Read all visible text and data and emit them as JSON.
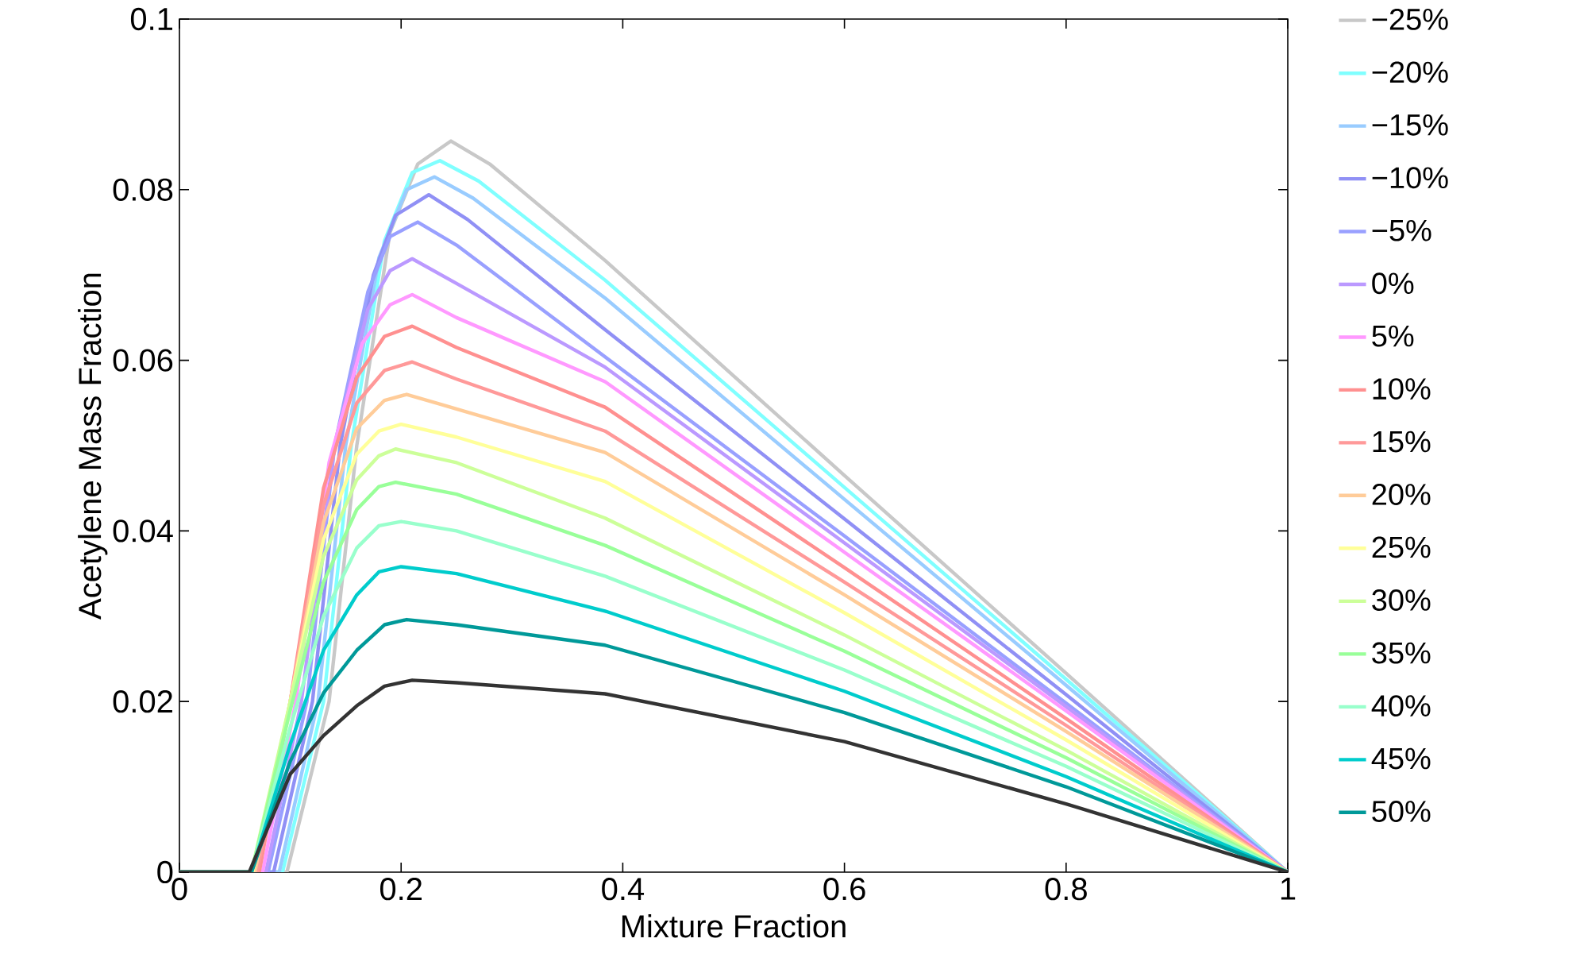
{
  "chart_data": {
    "type": "line",
    "xlabel": "Mixture Fraction",
    "ylabel": "Acetylene Mass Fraction",
    "xlim": [
      0,
      1
    ],
    "ylim": [
      0,
      0.1
    ],
    "xticks": [
      0,
      0.2,
      0.4,
      0.6,
      0.8,
      1
    ],
    "yticks": [
      0,
      0.02,
      0.04,
      0.06,
      0.08,
      0.1
    ],
    "grid": false,
    "legend": "right",
    "marker": "none",
    "line_style": "solid",
    "series": [
      {
        "name": "−25%",
        "color": "#c8c8c8",
        "x": [
          0,
          0.097,
          0.135,
          0.16,
          0.19,
          0.215,
          0.245,
          0.28,
          0.384,
          0.6,
          0.8,
          1
        ],
        "values": [
          0,
          0,
          0.02,
          0.05,
          0.075,
          0.083,
          0.0857,
          0.083,
          0.0717,
          0.0465,
          0.0233,
          0
        ]
      },
      {
        "name": "−20%",
        "color": "#80ffff",
        "x": [
          0,
          0.093,
          0.13,
          0.155,
          0.185,
          0.21,
          0.235,
          0.27,
          0.384,
          0.6,
          0.8,
          1
        ],
        "values": [
          0,
          0,
          0.02,
          0.05,
          0.074,
          0.082,
          0.0834,
          0.081,
          0.0694,
          0.0451,
          0.0226,
          0
        ]
      },
      {
        "name": "−15%",
        "color": "#99ccff",
        "x": [
          0,
          0.09,
          0.125,
          0.15,
          0.18,
          0.205,
          0.23,
          0.265,
          0.384,
          0.6,
          0.8,
          1
        ],
        "values": [
          0,
          0,
          0.02,
          0.05,
          0.072,
          0.08,
          0.0815,
          0.079,
          0.0673,
          0.0437,
          0.0219,
          0
        ]
      },
      {
        "name": "−10%",
        "color": "#9090f5",
        "x": [
          0,
          0.085,
          0.12,
          0.145,
          0.175,
          0.195,
          0.225,
          0.26,
          0.384,
          0.6,
          0.8,
          1
        ],
        "values": [
          0,
          0,
          0.02,
          0.05,
          0.07,
          0.077,
          0.0794,
          0.0765,
          0.0636,
          0.0414,
          0.0208,
          0
        ]
      },
      {
        "name": "−5%",
        "color": "#99a0ff",
        "x": [
          0,
          0.08,
          0.115,
          0.14,
          0.17,
          0.19,
          0.215,
          0.25,
          0.384,
          0.6,
          0.8,
          1
        ],
        "values": [
          0,
          0,
          0.02,
          0.05,
          0.068,
          0.0745,
          0.0762,
          0.0735,
          0.0604,
          0.0394,
          0.0198,
          0
        ]
      },
      {
        "name": "0%",
        "color": "#bb99ff",
        "x": [
          0,
          0.078,
          0.11,
          0.14,
          0.17,
          0.19,
          0.21,
          0.25,
          0.384,
          0.6,
          0.8,
          1
        ],
        "values": [
          0,
          0,
          0.02,
          0.05,
          0.066,
          0.0705,
          0.0719,
          0.069,
          0.0592,
          0.0386,
          0.0194,
          0
        ]
      },
      {
        "name": "5%",
        "color": "#ff99ff",
        "x": [
          0,
          0.075,
          0.105,
          0.135,
          0.165,
          0.19,
          0.21,
          0.25,
          0.384,
          0.6,
          0.8,
          1
        ],
        "values": [
          0,
          0,
          0.02,
          0.048,
          0.062,
          0.0665,
          0.0677,
          0.065,
          0.0575,
          0.0375,
          0.0189,
          0
        ]
      },
      {
        "name": "10%",
        "color": "#ff9090",
        "x": [
          0,
          0.072,
          0.1,
          0.13,
          0.16,
          0.185,
          0.21,
          0.25,
          0.384,
          0.6,
          0.8,
          1
        ],
        "values": [
          0,
          0,
          0.02,
          0.045,
          0.058,
          0.0628,
          0.064,
          0.0615,
          0.0545,
          0.0357,
          0.018,
          0
        ]
      },
      {
        "name": "15%",
        "color": "#ff9999",
        "x": [
          0,
          0.07,
          0.1,
          0.13,
          0.16,
          0.185,
          0.21,
          0.25,
          0.384,
          0.6,
          0.8,
          1
        ],
        "values": [
          0,
          0,
          0.02,
          0.043,
          0.055,
          0.0588,
          0.0598,
          0.0578,
          0.0517,
          0.034,
          0.0172,
          0
        ]
      },
      {
        "name": "20%",
        "color": "#ffcc99",
        "x": [
          0,
          0.068,
          0.1,
          0.13,
          0.16,
          0.185,
          0.205,
          0.25,
          0.384,
          0.6,
          0.8,
          1
        ],
        "values": [
          0,
          0,
          0.02,
          0.041,
          0.052,
          0.0553,
          0.056,
          0.0543,
          0.0492,
          0.0325,
          0.0165,
          0
        ]
      },
      {
        "name": "25%",
        "color": "#ffff99",
        "x": [
          0,
          0.066,
          0.1,
          0.13,
          0.16,
          0.18,
          0.2,
          0.25,
          0.384,
          0.6,
          0.8,
          1
        ],
        "values": [
          0,
          0,
          0.02,
          0.039,
          0.049,
          0.0517,
          0.0525,
          0.051,
          0.0458,
          0.0304,
          0.0155,
          0
        ]
      },
      {
        "name": "30%",
        "color": "#ccff99",
        "x": [
          0,
          0.065,
          0.1,
          0.13,
          0.16,
          0.18,
          0.195,
          0.25,
          0.384,
          0.6,
          0.8,
          1
        ],
        "values": [
          0,
          0,
          0.02,
          0.037,
          0.046,
          0.0488,
          0.0496,
          0.048,
          0.0415,
          0.0278,
          0.0143,
          0
        ]
      },
      {
        "name": "35%",
        "color": "#99ff99",
        "x": [
          0,
          0.065,
          0.1,
          0.13,
          0.16,
          0.18,
          0.195,
          0.25,
          0.384,
          0.6,
          0.8,
          1
        ],
        "values": [
          0,
          0,
          0.019,
          0.034,
          0.0425,
          0.0452,
          0.0457,
          0.0443,
          0.0383,
          0.0259,
          0.0134,
          0
        ]
      },
      {
        "name": "40%",
        "color": "#99ffcc",
        "x": [
          0,
          0.065,
          0.1,
          0.13,
          0.16,
          0.18,
          0.2,
          0.25,
          0.384,
          0.6,
          0.8,
          1
        ],
        "values": [
          0,
          0,
          0.017,
          0.03,
          0.038,
          0.0406,
          0.0411,
          0.04,
          0.0347,
          0.0237,
          0.0124,
          0
        ]
      },
      {
        "name": "45%",
        "color": "#00cccc",
        "x": [
          0,
          0.065,
          0.1,
          0.13,
          0.16,
          0.18,
          0.2,
          0.25,
          0.384,
          0.6,
          0.8,
          1
        ],
        "values": [
          0,
          0,
          0.015,
          0.026,
          0.0325,
          0.0352,
          0.0358,
          0.035,
          0.0306,
          0.0212,
          0.0112,
          0
        ]
      },
      {
        "name": "50%",
        "color": "#009999",
        "x": [
          0,
          0.065,
          0.1,
          0.13,
          0.16,
          0.185,
          0.205,
          0.25,
          0.384,
          0.6,
          0.8,
          1
        ],
        "values": [
          0,
          0,
          0.013,
          0.021,
          0.026,
          0.029,
          0.0296,
          0.029,
          0.0266,
          0.0187,
          0.01,
          0
        ]
      },
      {
        "color": "#333333",
        "x": [
          0,
          0.063,
          0.1,
          0.13,
          0.16,
          0.185,
          0.21,
          0.25,
          0.384,
          0.6,
          0.8,
          1
        ],
        "values": [
          0,
          0,
          0.0115,
          0.016,
          0.0195,
          0.0218,
          0.0225,
          0.0222,
          0.0209,
          0.0153,
          0.008,
          0
        ]
      }
    ]
  }
}
